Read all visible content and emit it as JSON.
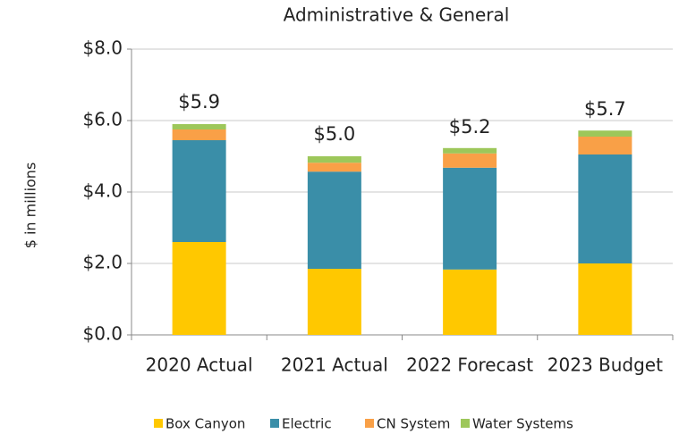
{
  "chart_data": {
    "type": "stacked_bar",
    "title": "Administrative & General",
    "y_label": "$ in millions",
    "categories": [
      "2020 Actual",
      "2021 Actual",
      "2022 Forecast",
      "2023 Budget"
    ],
    "series": [
      {
        "name": "Box Canyon",
        "color": "#ffc800",
        "values": [
          2.6,
          1.85,
          1.83,
          2.0
        ]
      },
      {
        "name": "Electric",
        "color": "#3a8ea8",
        "values": [
          2.85,
          2.72,
          2.85,
          3.05
        ]
      },
      {
        "name": "CN System",
        "color": "#f9a047",
        "values": [
          0.3,
          0.25,
          0.4,
          0.5
        ]
      },
      {
        "name": "Water Systems",
        "color": "#9dc75a",
        "values": [
          0.15,
          0.18,
          0.15,
          0.17
        ]
      }
    ],
    "totals": [
      5.9,
      5.0,
      5.2,
      5.7
    ],
    "total_labels": [
      "$5.9",
      "$5.0",
      "$5.2",
      "$5.7"
    ],
    "ylim": [
      0,
      8
    ],
    "yticks": [
      {
        "value": 0,
        "label": "$0.0"
      },
      {
        "value": 2,
        "label": "$2.0"
      },
      {
        "value": 4,
        "label": "$4.0"
      },
      {
        "value": 6,
        "label": "$6.0"
      },
      {
        "value": 8,
        "label": "$8.0"
      }
    ],
    "grid": true,
    "legend": "bottom"
  }
}
